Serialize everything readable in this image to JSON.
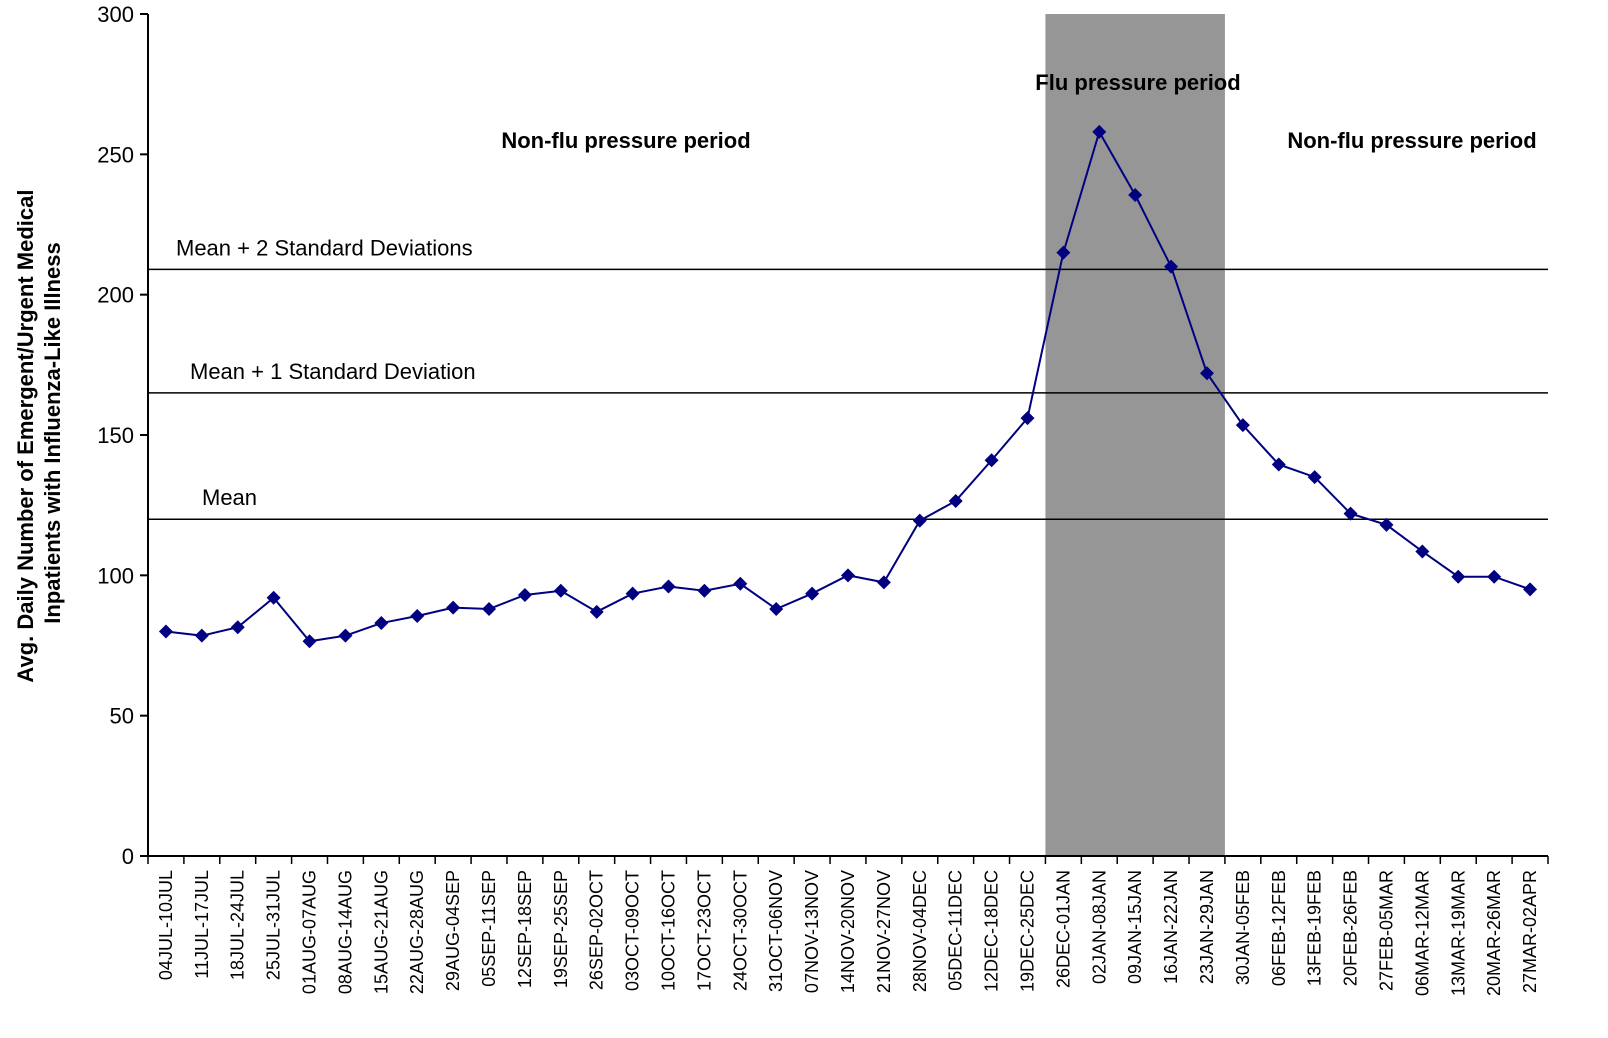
{
  "chart_data": {
    "type": "line",
    "title": "",
    "xlabel": "",
    "ylabel": [
      "Avg. Daily Number of Emergent/Urgent Medical",
      "Inpatients with Influenza-Like Illness"
    ],
    "ylim": [
      0,
      300
    ],
    "yticks": [
      0,
      50,
      100,
      150,
      200,
      250,
      300
    ],
    "grid": false,
    "legend": "none",
    "colors": {
      "series": "#000080",
      "flu_band": "#969696",
      "reference": "#000000"
    },
    "categories": [
      "04JUL-10JUL",
      "11JUL-17JUL",
      "18JUL-24JUL",
      "25JUL-31JUL",
      "01AUG-07AUG",
      "08AUG-14AUG",
      "15AUG-21AUG",
      "22AUG-28AUG",
      "29AUG-04SEP",
      "05SEP-11SEP",
      "12SEP-18SEP",
      "19SEP-25SEP",
      "26SEP-02OCT",
      "03OCT-09OCT",
      "10OCT-16OCT",
      "17OCT-23OCT",
      "24OCT-30OCT",
      "31OCT-06NOV",
      "07NOV-13NOV",
      "14NOV-20NOV",
      "21NOV-27NOV",
      "28NOV-04DEC",
      "05DEC-11DEC",
      "12DEC-18DEC",
      "19DEC-25DEC",
      "26DEC-01JAN",
      "02JAN-08JAN",
      "09JAN-15JAN",
      "16JAN-22JAN",
      "23JAN-29JAN",
      "30JAN-05FEB",
      "06FEB-12FEB",
      "13FEB-19FEB",
      "20FEB-26FEB",
      "27FEB-05MAR",
      "06MAR-12MAR",
      "13MAR-19MAR",
      "20MAR-26MAR",
      "27MAR-02APR"
    ],
    "values": [
      80,
      78.5,
      81.5,
      92,
      76.5,
      78.5,
      83,
      85.5,
      88.5,
      88,
      93,
      94.5,
      87,
      93.5,
      96,
      94.5,
      97,
      88,
      93.5,
      100,
      97.5,
      119.5,
      126.5,
      141,
      156,
      215,
      258,
      235.5,
      210,
      172,
      153.5,
      139.5,
      135,
      122,
      118,
      108.5,
      99.5,
      99.5,
      95
    ],
    "reference_lines": [
      {
        "label": "Mean + 2 Standard Deviations",
        "value": 209
      },
      {
        "label": "Mean + 1 Standard Deviation",
        "value": 165
      },
      {
        "label": "Mean",
        "value": 120
      }
    ],
    "periods": [
      {
        "label": "Non-flu pressure period",
        "shaded": false
      },
      {
        "label": "Flu pressure period",
        "shaded": true,
        "from": "26DEC-01JAN",
        "to": "23JAN-29JAN"
      },
      {
        "label": "Non-flu pressure period",
        "shaded": false
      }
    ]
  }
}
